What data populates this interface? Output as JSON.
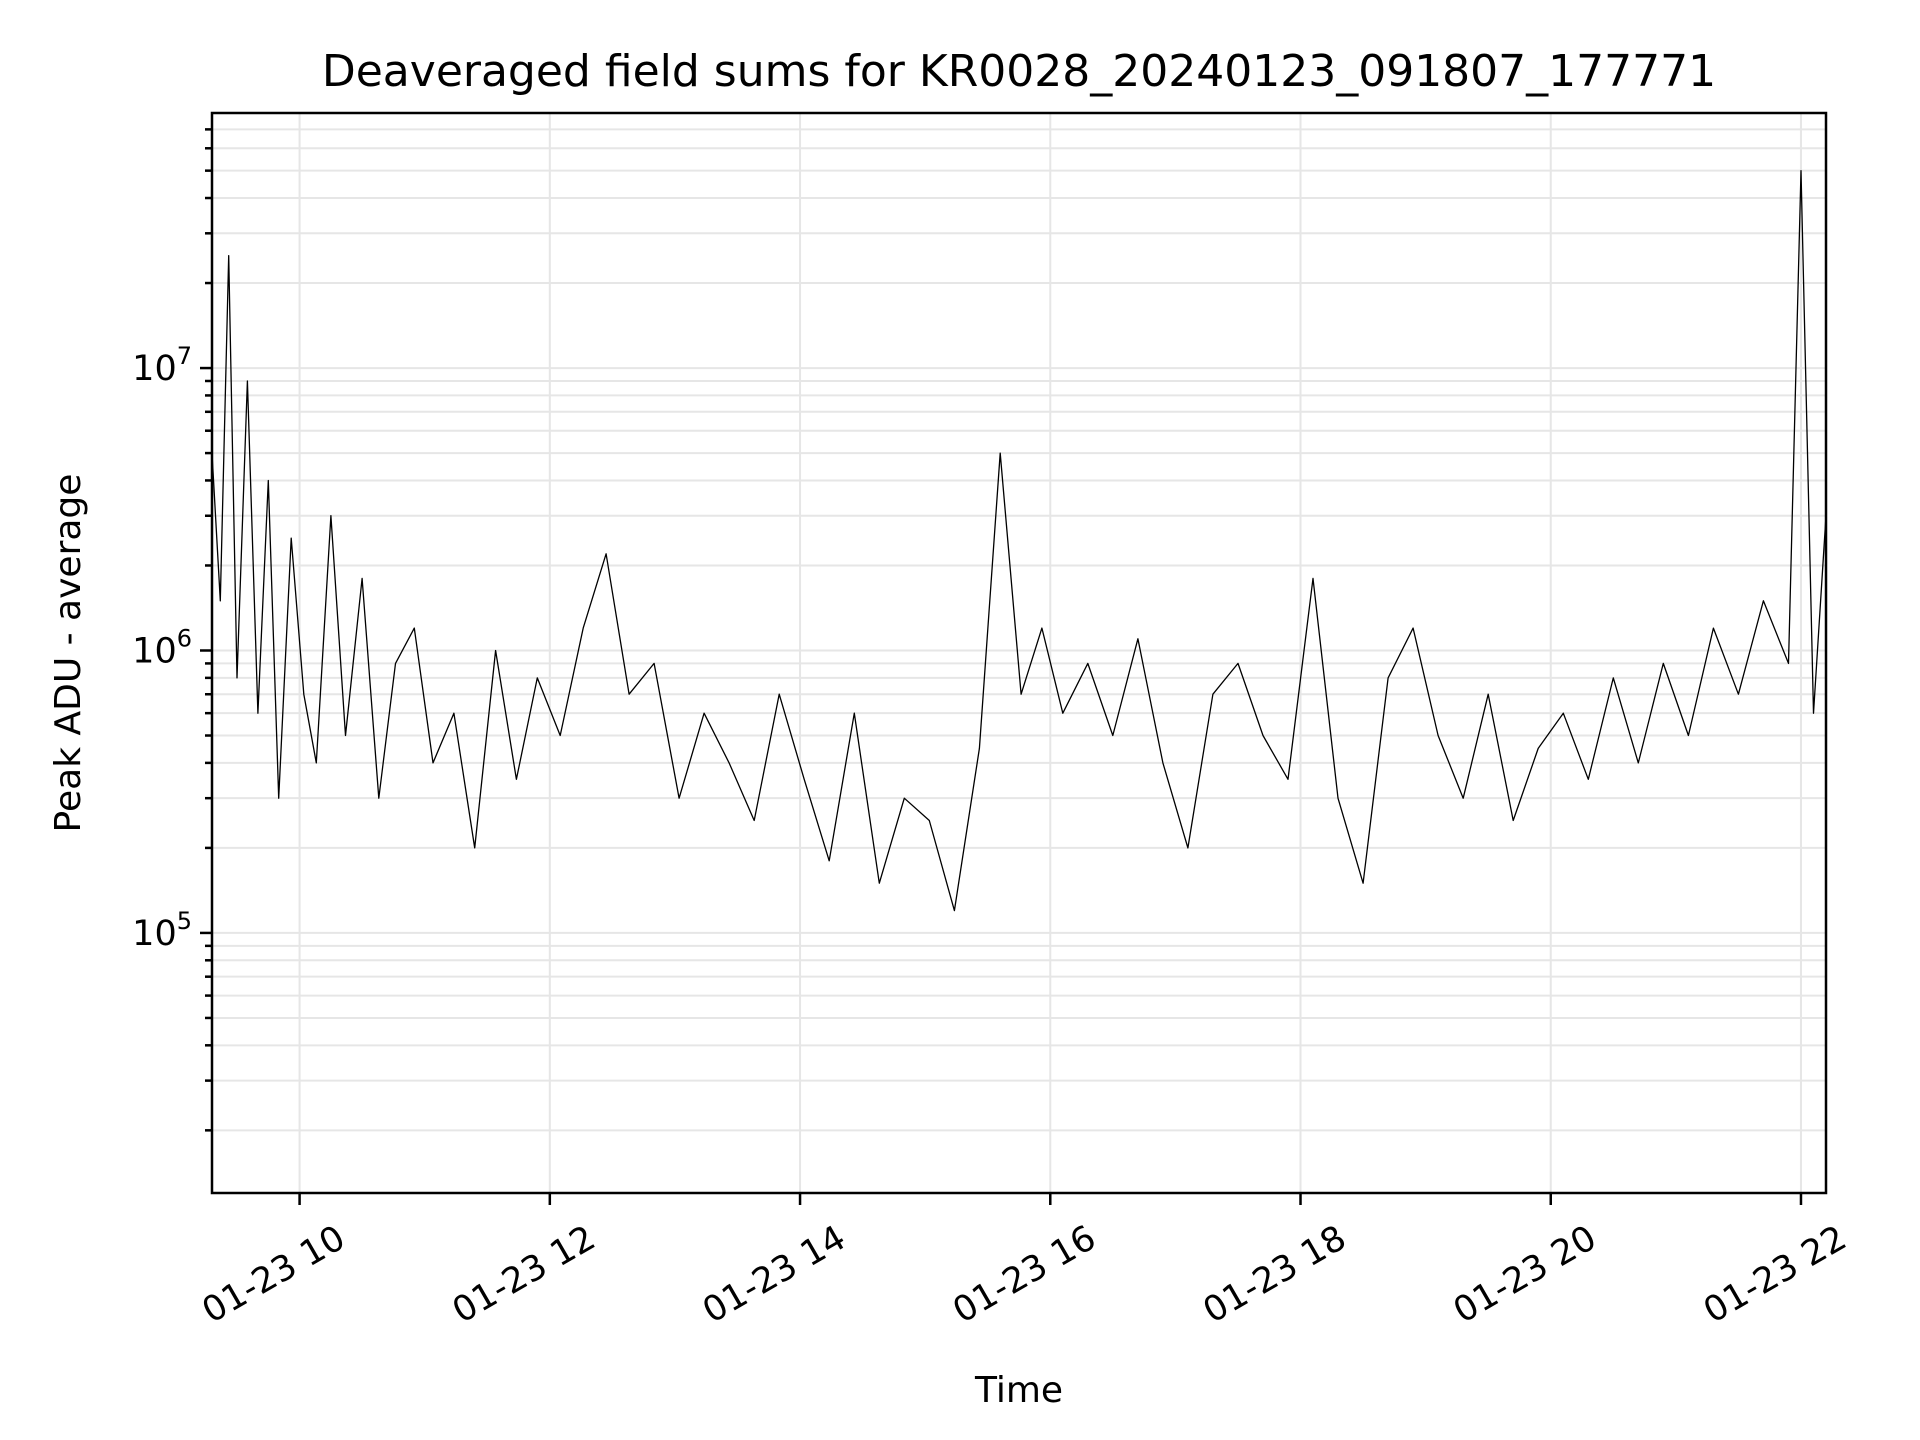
{
  "chart_data": {
    "type": "line",
    "title": "Deaveraged field sums for KR0028_20240123_091807_177771",
    "xlabel": "Time",
    "ylabel": "Peak ADU - average",
    "x_type": "datetime",
    "xlim": [
      "01-23 09:18",
      "01-23 22:12"
    ],
    "x_ticks": [
      {
        "value": "01-23 10:00",
        "label": "01-23 10"
      },
      {
        "value": "01-23 12:00",
        "label": "01-23 12"
      },
      {
        "value": "01-23 14:00",
        "label": "01-23 14"
      },
      {
        "value": "01-23 16:00",
        "label": "01-23 16"
      },
      {
        "value": "01-23 18:00",
        "label": "01-23 18"
      },
      {
        "value": "01-23 20:00",
        "label": "01-23 20"
      },
      {
        "value": "01-23 22:00",
        "label": "01-23 22"
      }
    ],
    "y_scale": "log",
    "ylim": [
      12000,
      80000000
    ],
    "y_ticks": [
      {
        "value": 100000,
        "base": "10",
        "exp": "5"
      },
      {
        "value": 1000000,
        "base": "10",
        "exp": "6"
      },
      {
        "value": 10000000,
        "base": "10",
        "exp": "7"
      }
    ],
    "grid": "major and minor",
    "line_color": "#000000",
    "series": [
      {
        "x": [
          "01-23 09:18",
          "01-23 09:22",
          "01-23 09:26",
          "01-23 09:30",
          "01-23 09:35",
          "01-23 09:40",
          "01-23 09:45",
          "01-23 09:50",
          "01-23 09:56",
          "01-23 10:02",
          "01-23 10:08",
          "01-23 10:15",
          "01-23 10:22",
          "01-23 10:30",
          "01-23 10:38",
          "01-23 10:46",
          "01-23 10:55",
          "01-23 11:04",
          "01-23 11:14",
          "01-23 11:24",
          "01-23 11:34",
          "01-23 11:44",
          "01-23 11:54",
          "01-23 12:05",
          "01-23 12:16",
          "01-23 12:27",
          "01-23 12:38",
          "01-23 12:50",
          "01-23 13:02",
          "01-23 13:14",
          "01-23 13:26",
          "01-23 13:38",
          "01-23 13:50",
          "01-23 14:02",
          "01-23 14:14",
          "01-23 14:26",
          "01-23 14:38",
          "01-23 14:50",
          "01-23 15:02",
          "01-23 15:14",
          "01-23 15:26",
          "01-23 15:36",
          "01-23 15:46",
          "01-23 15:56",
          "01-23 16:06",
          "01-23 16:18",
          "01-23 16:30",
          "01-23 16:42",
          "01-23 16:54",
          "01-23 17:06",
          "01-23 17:18",
          "01-23 17:30",
          "01-23 17:42",
          "01-23 17:54",
          "01-23 18:06",
          "01-23 18:18",
          "01-23 18:30",
          "01-23 18:42",
          "01-23 18:54",
          "01-23 19:06",
          "01-23 19:18",
          "01-23 19:30",
          "01-23 19:42",
          "01-23 19:54",
          "01-23 20:06",
          "01-23 20:18",
          "01-23 20:30",
          "01-23 20:42",
          "01-23 20:54",
          "01-23 21:06",
          "01-23 21:18",
          "01-23 21:30",
          "01-23 21:42",
          "01-23 21:54",
          "01-23 22:00",
          "01-23 22:06",
          "01-23 22:12"
        ],
        "y": [
          5000000,
          1500000,
          25000000,
          800000,
          9000000,
          600000,
          4000000,
          300000,
          2500000,
          700000,
          400000,
          3000000,
          500000,
          1800000,
          300000,
          900000,
          1200000,
          400000,
          600000,
          200000,
          1000000,
          350000,
          800000,
          500000,
          1200000,
          2200000,
          700000,
          900000,
          300000,
          600000,
          400000,
          250000,
          700000,
          350000,
          180000,
          600000,
          150000,
          300000,
          250000,
          120000,
          450000,
          5000000,
          700000,
          1200000,
          600000,
          900000,
          500000,
          1100000,
          400000,
          200000,
          700000,
          900000,
          500000,
          350000,
          1800000,
          300000,
          150000,
          800000,
          1200000,
          500000,
          300000,
          700000,
          250000,
          450000,
          600000,
          350000,
          800000,
          400000,
          900000,
          500000,
          1200000,
          700000,
          1500000,
          900000,
          50000000,
          600000,
          3000000
        ]
      }
    ]
  }
}
